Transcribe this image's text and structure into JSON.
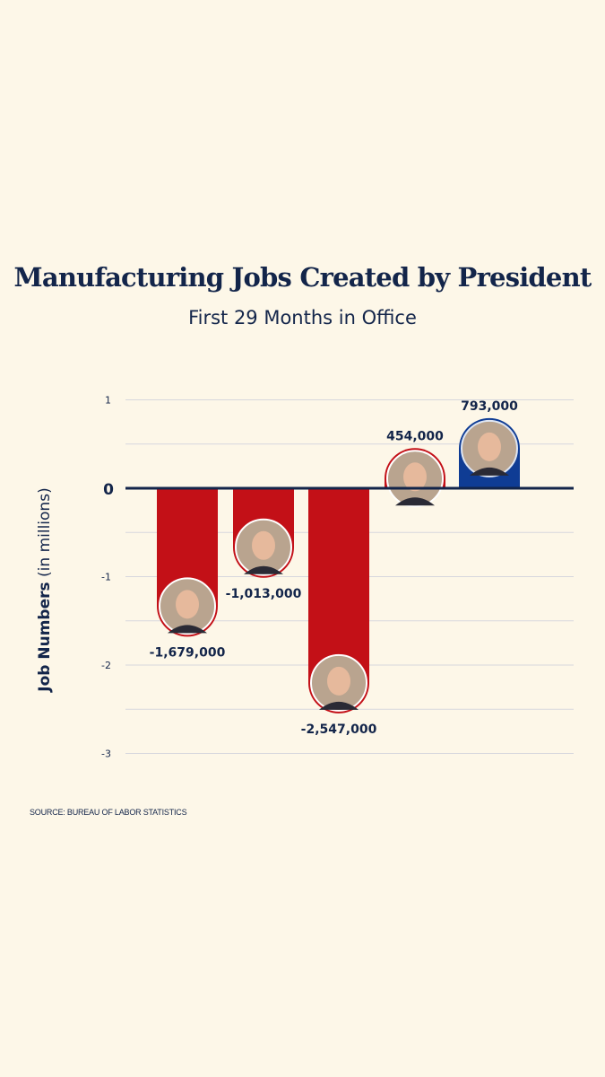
{
  "title": "Manufacturing Jobs Created by President",
  "subtitle": "First 29 Months in Office",
  "source": "SOURCE: BUREAU OF LABOR STATISTICS",
  "chart_data": {
    "type": "bar",
    "title": "Manufacturing Jobs Created by President",
    "subtitle": "First 29 Months in Office",
    "xlabel": "",
    "ylabel": {
      "bold": "Job Numbers",
      "normal": "(in millions)"
    },
    "ylim": [
      -3,
      1
    ],
    "yticks": [
      {
        "value": 1,
        "label": "1"
      },
      {
        "value": 0,
        "label": "0"
      },
      {
        "value": -1,
        "label": "-1"
      },
      {
        "value": -2,
        "label": "-2"
      },
      {
        "value": -3,
        "label": "-3"
      }
    ],
    "grid": true,
    "values": [
      -1.679,
      -1.013,
      -2.547,
      0.454,
      0.793
    ],
    "data_labels": [
      "-1,679,000",
      "-1,013,000",
      "-2,547,000",
      "454,000",
      "793,000"
    ],
    "portraits": [
      "reagan-portrait",
      "hw-bush-portrait",
      "w-bush-portrait",
      "trump-portrait",
      "biden-portrait"
    ],
    "bar_colors": [
      "#c31017",
      "#c31017",
      "#c31017",
      "#c31017",
      "#0f3c94"
    ]
  },
  "colors": {
    "background": "#fdf7e8",
    "text": "#13254a",
    "red": "#c31017",
    "blue": "#0f3c94",
    "grid": "#d7d7dd",
    "zero_line": "#13254a"
  }
}
